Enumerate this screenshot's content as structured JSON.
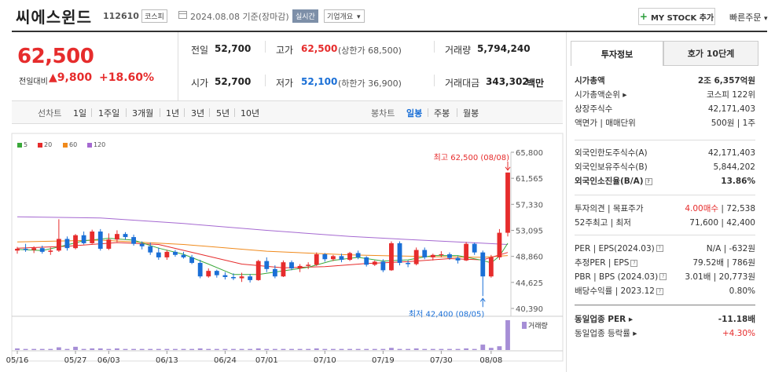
{
  "header": {
    "stock_name": "씨에스윈드",
    "stock_code": "112610",
    "market_tag": "코스피",
    "date_text": "2024.08.08 기준(장마감)",
    "realtime_tag": "실시간",
    "company_tag": "기업개요",
    "company_arrow": "▾",
    "my_stock_plus": "+",
    "my_stock_label": "MY STOCK 추가",
    "quick_order_label": "빠른주문",
    "quick_order_arrow": "▾"
  },
  "price": {
    "current": "62,500",
    "change_label": "전일대비",
    "change_arrow": "▲",
    "change_value": "9,800",
    "change_rate": "+18.60%"
  },
  "quote": {
    "prev_label": "전일",
    "prev_value": "52,700",
    "high_label": "고가",
    "high_value": "62,500",
    "high_sub": "(상한가 68,500)",
    "volume_label": "거래량",
    "volume_value": "5,794,240",
    "open_label": "시가",
    "open_value": "52,700",
    "low_label": "저가",
    "low_value": "52,100",
    "low_sub": "(하한가 36,900)",
    "amount_label": "거래대금",
    "amount_value": "343,302",
    "amount_unit": "백만"
  },
  "period_bar": {
    "line_label": "선차트",
    "line_periods": [
      "1일",
      "1주일",
      "3개월",
      "1년",
      "3년",
      "5년",
      "10년"
    ],
    "candle_label": "봉차트",
    "candle_periods": [
      "일봉",
      "주봉",
      "월봉"
    ],
    "active_candle": "일봉"
  },
  "colors": {
    "up": "#e62c2c",
    "down": "#1a6fd6",
    "ma5": "#3aa83a",
    "ma20": "#e62c2c",
    "ma60": "#f08a1c",
    "ma120": "#a569d1",
    "volume": "#a68ed6"
  },
  "chart_data": {
    "type": "candlestick",
    "legend": [
      {
        "name": "5",
        "color": "#3aa83a"
      },
      {
        "name": "20",
        "color": "#e62c2c"
      },
      {
        "name": "60",
        "color": "#f08a1c"
      },
      {
        "name": "120",
        "color": "#a569d1"
      }
    ],
    "y_ticks": [
      65800,
      61565,
      57330,
      53095,
      48860,
      44625,
      40390
    ],
    "ylim": [
      40390,
      65800
    ],
    "x_ticks": [
      {
        "label": "05/16",
        "index": 0
      },
      {
        "label": "05/27",
        "index": 7
      },
      {
        "label": "06/03",
        "index": 11
      },
      {
        "label": "06/13",
        "index": 18
      },
      {
        "label": "06/24",
        "index": 25
      },
      {
        "label": "07/01",
        "index": 30
      },
      {
        "label": "07/10",
        "index": 37
      },
      {
        "label": "07/19",
        "index": 44
      },
      {
        "label": "07/30",
        "index": 51
      },
      {
        "label": "08/08",
        "index": 57
      }
    ],
    "max_label": "최고 62,500 (08/08)",
    "min_label": "최저 42,400 (08/05)",
    "volume_label": "거래량",
    "candles": [
      [
        49800,
        50400,
        49300,
        50100
      ],
      [
        50100,
        50900,
        49600,
        49900
      ],
      [
        49900,
        50500,
        49400,
        50200
      ],
      [
        50200,
        50600,
        49300,
        49600
      ],
      [
        49600,
        50300,
        49100,
        49800
      ],
      [
        49800,
        54900,
        49600,
        51700
      ],
      [
        51700,
        52100,
        49800,
        50200
      ],
      [
        50200,
        52500,
        50000,
        52300
      ],
      [
        52300,
        52900,
        50800,
        51000
      ],
      [
        51000,
        53200,
        50900,
        52900
      ],
      [
        52900,
        53300,
        49800,
        50100
      ],
      [
        50100,
        52600,
        49900,
        51600
      ],
      [
        51600,
        53100,
        51200,
        52500
      ],
      [
        52500,
        52800,
        51600,
        52000
      ],
      [
        52000,
        52400,
        50600,
        50900
      ],
      [
        50900,
        51300,
        50000,
        50500
      ],
      [
        50500,
        51100,
        49100,
        49500
      ],
      [
        49500,
        50300,
        48300,
        48700
      ],
      [
        48700,
        49900,
        48300,
        49600
      ],
      [
        49600,
        49900,
        48800,
        49100
      ],
      [
        49100,
        49600,
        48500,
        48700
      ],
      [
        48700,
        49100,
        47600,
        47800
      ],
      [
        47800,
        48300,
        45300,
        45600
      ],
      [
        45600,
        46900,
        45400,
        46500
      ],
      [
        46500,
        46700,
        45400,
        45800
      ],
      [
        45800,
        46300,
        45100,
        45500
      ],
      [
        45500,
        46100,
        45000,
        45300
      ],
      [
        45300,
        46200,
        44700,
        45600
      ],
      [
        45600,
        46000,
        44600,
        45000
      ],
      [
        45000,
        48300,
        44900,
        48100
      ],
      [
        48100,
        48700,
        46300,
        46800
      ],
      [
        46800,
        47400,
        45300,
        45600
      ],
      [
        45600,
        48200,
        45500,
        47900
      ],
      [
        47900,
        48200,
        46600,
        46900
      ],
      [
        46900,
        47600,
        46300,
        47300
      ],
      [
        47300,
        47900,
        46800,
        47500
      ],
      [
        47500,
        49500,
        47300,
        49200
      ],
      [
        49200,
        49400,
        48000,
        48400
      ],
      [
        48400,
        49100,
        48100,
        48900
      ],
      [
        48900,
        49300,
        47900,
        48300
      ],
      [
        48300,
        49600,
        48100,
        49400
      ],
      [
        49400,
        49800,
        48400,
        48700
      ],
      [
        48700,
        48900,
        47200,
        47500
      ],
      [
        47500,
        48200,
        47300,
        48000
      ],
      [
        48000,
        48400,
        46300,
        46600
      ],
      [
        46600,
        51300,
        46500,
        51000
      ],
      [
        51000,
        51300,
        47400,
        47800
      ],
      [
        47800,
        48200,
        47100,
        47600
      ],
      [
        47600,
        50300,
        47400,
        49900
      ],
      [
        49900,
        50300,
        48400,
        48700
      ],
      [
        48700,
        49300,
        48200,
        49100
      ],
      [
        49100,
        49700,
        48700,
        49200
      ],
      [
        49200,
        49500,
        48300,
        48600
      ],
      [
        48600,
        48900,
        47700,
        48200
      ],
      [
        48200,
        51200,
        48100,
        50900
      ],
      [
        50900,
        51100,
        49100,
        49500
      ],
      [
        49500,
        49800,
        42400,
        45600
      ],
      [
        45600,
        49100,
        45400,
        48700
      ],
      [
        48700,
        53300,
        48300,
        52700
      ],
      [
        52700,
        62500,
        52100,
        62500
      ]
    ],
    "volumes": [
      3,
      2,
      2,
      2,
      2,
      5,
      2,
      6,
      2,
      3,
      3,
      2,
      3,
      2,
      2,
      2,
      2,
      2,
      2,
      2,
      2,
      2,
      3,
      2,
      2,
      2,
      2,
      2,
      2,
      3,
      2,
      2,
      2,
      2,
      2,
      2,
      3,
      2,
      2,
      2,
      2,
      2,
      2,
      2,
      2,
      4,
      2,
      2,
      3,
      2,
      2,
      2,
      2,
      2,
      3,
      2,
      10,
      4,
      7,
      55
    ],
    "ma_series": {
      "ma5": [
        [
          0,
          50000
        ],
        [
          3,
          49800
        ],
        [
          5,
          50400
        ],
        [
          8,
          51400
        ],
        [
          11,
          51800
        ],
        [
          14,
          51500
        ],
        [
          17,
          50200
        ],
        [
          20,
          49200
        ],
        [
          23,
          47600
        ],
        [
          26,
          45900
        ],
        [
          29,
          45900
        ],
        [
          32,
          46500
        ],
        [
          35,
          47100
        ],
        [
          38,
          48200
        ],
        [
          41,
          48700
        ],
        [
          44,
          48100
        ],
        [
          47,
          48300
        ],
        [
          50,
          49000
        ],
        [
          53,
          49000
        ],
        [
          56,
          48200
        ],
        [
          57,
          47800
        ],
        [
          58,
          48900
        ],
        [
          59,
          51000
        ]
      ],
      "ma20": [
        [
          0,
          50200
        ],
        [
          6,
          50500
        ],
        [
          12,
          51100
        ],
        [
          17,
          50800
        ],
        [
          22,
          49200
        ],
        [
          27,
          47600
        ],
        [
          32,
          47000
        ],
        [
          37,
          47200
        ],
        [
          42,
          47700
        ],
        [
          47,
          48000
        ],
        [
          52,
          48500
        ],
        [
          56,
          48300
        ],
        [
          59,
          49500
        ]
      ],
      "ma60": [
        [
          0,
          51200
        ],
        [
          10,
          51500
        ],
        [
          20,
          50800
        ],
        [
          30,
          49700
        ],
        [
          40,
          49100
        ],
        [
          50,
          48800
        ],
        [
          56,
          48700
        ],
        [
          59,
          49000
        ]
      ],
      "ma120": [
        [
          0,
          55300
        ],
        [
          10,
          55100
        ],
        [
          20,
          54200
        ],
        [
          30,
          53100
        ],
        [
          40,
          52100
        ],
        [
          50,
          51400
        ],
        [
          56,
          51000
        ],
        [
          59,
          50800
        ]
      ]
    }
  },
  "right_panel": {
    "tab_info": "투자정보",
    "tab_order": "호가 10단계",
    "rows_a": [
      {
        "l": "시가총액",
        "r": "2조 6,357억원",
        "bold": true
      },
      {
        "l": "시가총액순위 ▸",
        "r": "코스피 122위"
      },
      {
        "l": "상장주식수",
        "r": "42,171,403"
      },
      {
        "l": "액면가 | 매매단위",
        "r": "500원 | 1주"
      }
    ],
    "rows_b": [
      {
        "l": "외국인한도주식수(A)",
        "r": "42,171,403"
      },
      {
        "l": "외국인보유주식수(B)",
        "r": "5,844,202"
      },
      {
        "l": "외국인소진율(B/A)",
        "r": "13.86%",
        "bold": true,
        "q": true
      }
    ],
    "rows_c": [
      {
        "l": "투자의견 | 목표주가",
        "r_red": "4.00매수",
        "r": " | 72,538"
      },
      {
        "l": "52주최고 | 최저",
        "r": "71,600 | 42,400"
      }
    ],
    "rows_d": [
      {
        "l": "PER | EPS(2024.03)",
        "q": true,
        "r": "N/A | -632원"
      },
      {
        "l": "추정PER | EPS",
        "q": true,
        "r": "79.52배 | 786원"
      },
      {
        "l": "PBR | BPS (2024.03)",
        "q": true,
        "r": "3.01배 | 20,773원"
      },
      {
        "l": "배당수익률 | 2023.12",
        "q": true,
        "r": "0.80%"
      }
    ],
    "rows_e": [
      {
        "l": "동일업종 PER ▸",
        "r": "-11.18배",
        "bold": true
      },
      {
        "l": "동일업종 등락률 ▸",
        "r": "+4.30%",
        "red": true
      }
    ]
  }
}
